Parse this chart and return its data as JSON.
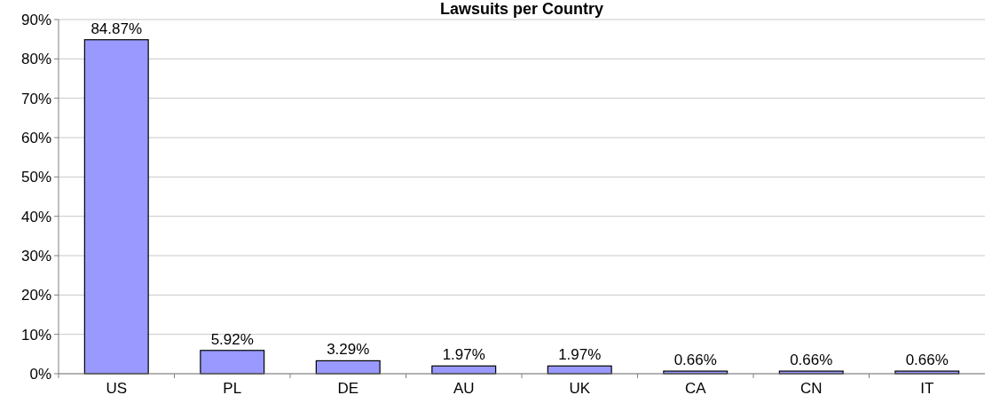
{
  "chart_data": {
    "type": "bar",
    "title": "Lawsuits per Country",
    "categories": [
      "US",
      "PL",
      "DE",
      "AU",
      "UK",
      "CA",
      "CN",
      "IT"
    ],
    "values": [
      84.87,
      5.92,
      3.29,
      1.97,
      1.97,
      0.66,
      0.66,
      0.66
    ],
    "value_labels": [
      "84.87%",
      "5.92%",
      "3.29%",
      "1.97%",
      "1.97%",
      "0.66%",
      "0.66%",
      "0.66%"
    ],
    "color": "#9999ff",
    "ylim": [
      0,
      90
    ],
    "yticks": [
      {
        "value": 0,
        "label": "0%"
      },
      {
        "value": 10,
        "label": "10%"
      },
      {
        "value": 20,
        "label": "20%"
      },
      {
        "value": 30,
        "label": "30%"
      },
      {
        "value": 40,
        "label": "40%"
      },
      {
        "value": 50,
        "label": "50%"
      },
      {
        "value": 60,
        "label": "60%"
      },
      {
        "value": 70,
        "label": "70%"
      },
      {
        "value": 80,
        "label": "80%"
      },
      {
        "value": 90,
        "label": "90%"
      }
    ],
    "grid": "y"
  }
}
